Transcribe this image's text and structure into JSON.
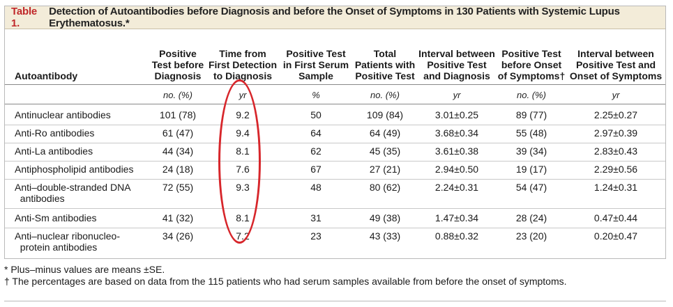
{
  "caption": {
    "number": "Table 1.",
    "text": "Detection of Autoantibodies before Diagnosis and before the Onset of Symptoms in 130 Patients with Systemic Lupus Erythematosus.*"
  },
  "headers": [
    "Autoantibody",
    "Positive\nTest before\nDiagnosis",
    "Time from\nFirst Detection\nto Diagnosis",
    "Positive Test\nin First Serum\nSample",
    "Total\nPatients with\nPositive Test",
    "Interval between\nPositive Test\nand Diagnosis",
    "Positive Test\nbefore Onset\nof Symptoms†",
    "Interval between\nPositive Test and\nOnset of Symptoms"
  ],
  "units": [
    "",
    "no. (%)",
    "yr",
    "%",
    "no. (%)",
    "yr",
    "no. (%)",
    "yr"
  ],
  "rows": [
    [
      "Antinuclear antibodies",
      "101 (78)",
      "9.2",
      "50",
      "109 (84)",
      "3.01±0.25",
      "89 (77)",
      "2.25±0.27"
    ],
    [
      "Anti-Ro antibodies",
      "61 (47)",
      "9.4",
      "64",
      "64 (49)",
      "3.68±0.34",
      "55 (48)",
      "2.97±0.39"
    ],
    [
      "Anti-La antibodies",
      "44 (34)",
      "8.1",
      "62",
      "45 (35)",
      "3.61±0.38",
      "39 (34)",
      "2.83±0.43"
    ],
    [
      "Antiphospholipid antibodies",
      "24 (18)",
      "7.6",
      "67",
      "27 (21)",
      "2.94±0.50",
      "19 (17)",
      "2.29±0.56"
    ],
    [
      "Anti–double-stranded DNA\n  antibodies",
      "72 (55)",
      "9.3",
      "48",
      "80 (62)",
      "2.24±0.31",
      "54 (47)",
      "1.24±0.31"
    ],
    [
      "Anti-Sm antibodies",
      "41 (32)",
      "8.1",
      "31",
      "49 (38)",
      "1.47±0.34",
      "28 (24)",
      "0.47±0.44"
    ],
    [
      "Anti–nuclear ribonucleo-\n  protein antibodies",
      "34 (26)",
      "7.2",
      "23",
      "43 (33)",
      "0.88±0.32",
      "23 (20)",
      "0.20±0.47"
    ]
  ],
  "footnotes": [
    "* Plus–minus values are means ±SE.",
    "† The percentages are based on data from the 115 patients who had serum samples available from before the onset of symptoms."
  ],
  "highlight_color": "#d7262b"
}
